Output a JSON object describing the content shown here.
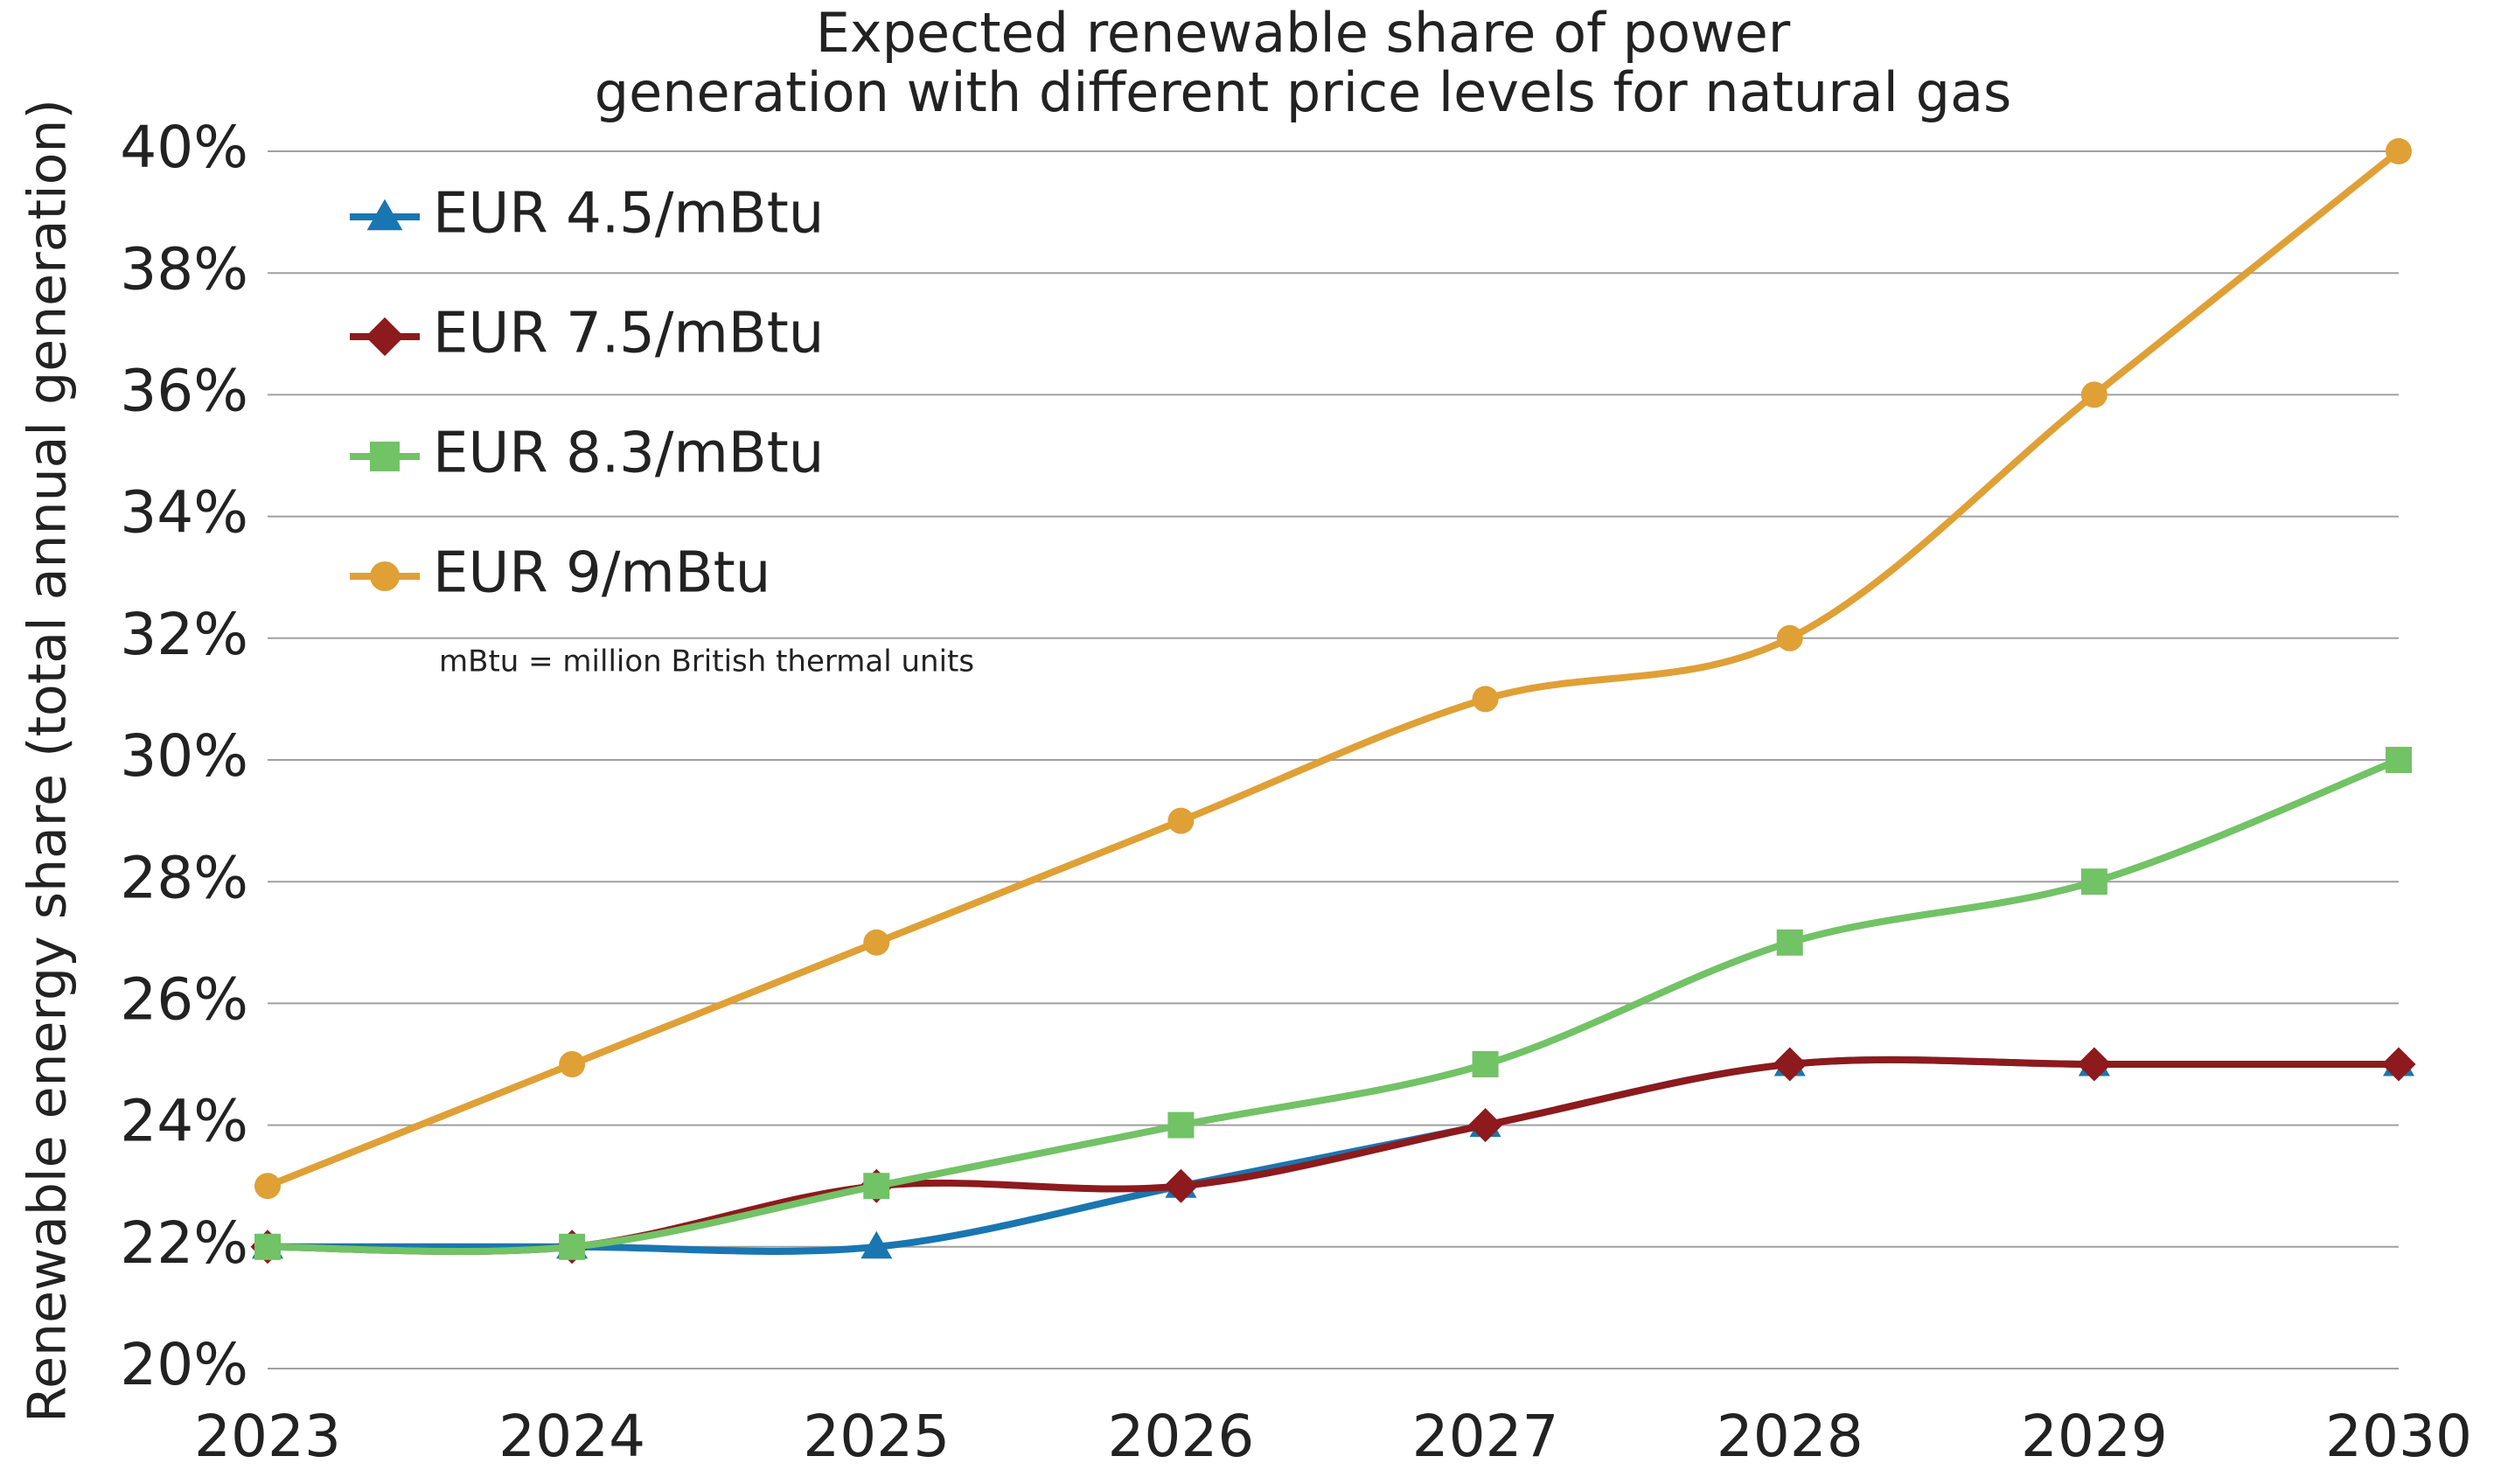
{
  "chart_data": {
    "type": "line",
    "title": [
      "Expected renewable share of power",
      "generation with different price levels for natural gas"
    ],
    "y_label": "Renewable energy share (total annual generation)",
    "annotation": "mBtu = million British thermal units",
    "categories": [
      "2023",
      "2024",
      "2025",
      "2026",
      "2027",
      "2028",
      "2029",
      "2030"
    ],
    "series": [
      {
        "name": "EUR 4.5/mBtu",
        "color": "#1a76b0",
        "marker": "triangle",
        "values": [
          22,
          22,
          22,
          23,
          24,
          25,
          25,
          25
        ]
      },
      {
        "name": "EUR 7.5/mBtu",
        "color": "#8d1a1c",
        "marker": "diamond",
        "values": [
          22,
          22,
          23,
          23,
          24,
          25,
          25,
          25
        ]
      },
      {
        "name": "EUR 8.3/mBtu",
        "color": "#72c266",
        "marker": "square",
        "values": [
          22,
          22,
          23,
          24,
          25,
          27,
          28,
          30
        ]
      },
      {
        "name": "EUR 9/mBtu",
        "color": "#dfa036",
        "marker": "circle",
        "values": [
          23,
          25,
          27,
          29,
          31,
          32,
          36,
          40
        ]
      }
    ],
    "ylim": [
      20,
      40
    ],
    "yticks": [
      {
        "value": 20,
        "label": "20%"
      },
      {
        "value": 22,
        "label": "22%"
      },
      {
        "value": 24,
        "label": "24%"
      },
      {
        "value": 26,
        "label": "26%"
      },
      {
        "value": 28,
        "label": "28%"
      },
      {
        "value": 30,
        "label": "30%"
      },
      {
        "value": 32,
        "label": "32%"
      },
      {
        "value": 34,
        "label": "34%"
      },
      {
        "value": 36,
        "label": "36%"
      },
      {
        "value": 38,
        "label": "38%"
      },
      {
        "value": 40,
        "label": "40%"
      }
    ],
    "grid": true,
    "smooth": true,
    "legend": "upper left"
  }
}
